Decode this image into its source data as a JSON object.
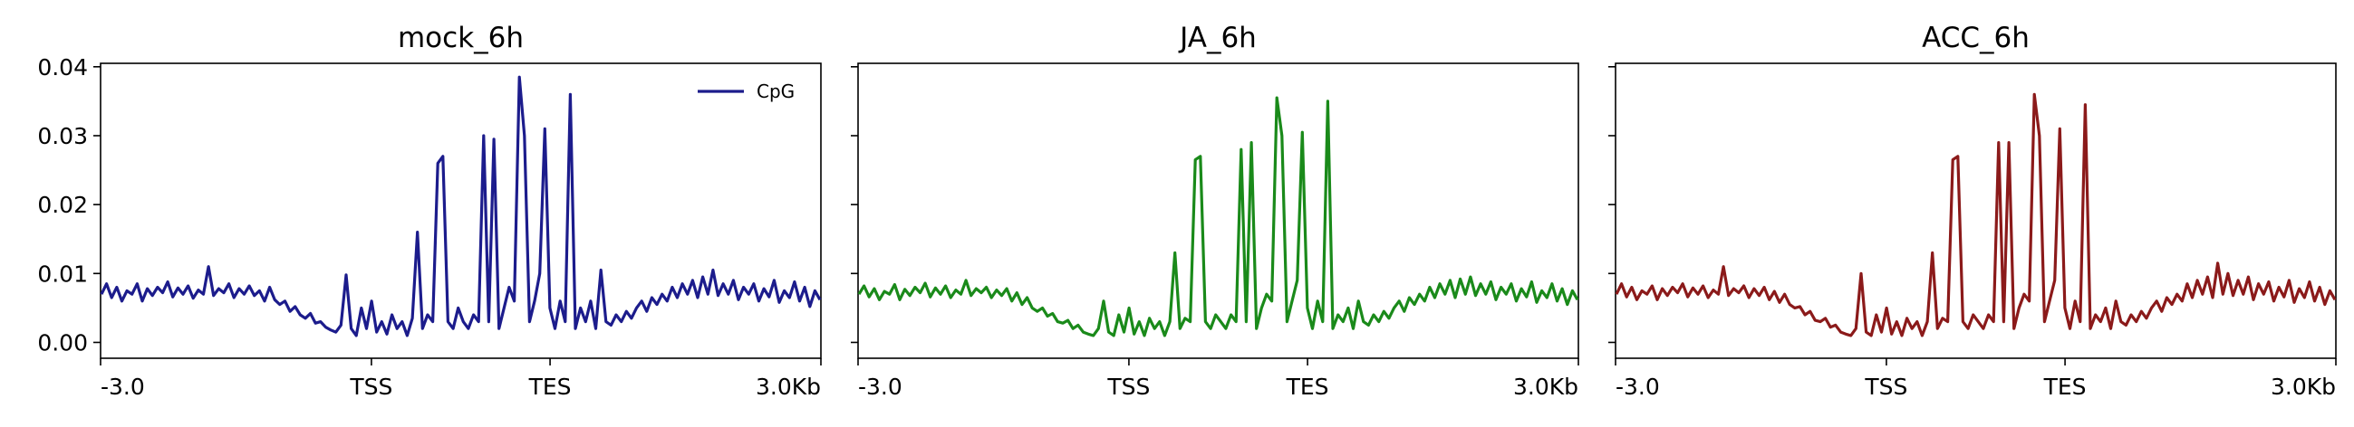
{
  "chart_data": [
    {
      "type": "line",
      "title": "mock_6h",
      "xlabel": "",
      "ylabel": "",
      "x_tick_labels": [
        "-3.0",
        "TSS",
        "TES",
        "3.0Kb"
      ],
      "y_tick_labels": [
        "0.00",
        "0.01",
        "0.02",
        "0.03",
        "0.04"
      ],
      "ylim": [
        -0.0023,
        0.0405
      ],
      "legend": {
        "placement": "top-right",
        "entries": [
          "CpG"
        ]
      },
      "grid": false,
      "series": [
        {
          "name": "CpG",
          "color": "#1c1c8c",
          "values": [
            0.007,
            0.0085,
            0.0065,
            0.008,
            0.006,
            0.0075,
            0.007,
            0.0085,
            0.006,
            0.0078,
            0.0068,
            0.008,
            0.0072,
            0.0088,
            0.0066,
            0.0079,
            0.007,
            0.0082,
            0.0064,
            0.0076,
            0.007,
            0.011,
            0.0068,
            0.0078,
            0.0072,
            0.0085,
            0.0065,
            0.0078,
            0.007,
            0.0082,
            0.0068,
            0.0075,
            0.006,
            0.008,
            0.0062,
            0.0055,
            0.006,
            0.0045,
            0.0052,
            0.004,
            0.0035,
            0.0042,
            0.0028,
            0.003,
            0.0022,
            0.0018,
            0.0015,
            0.0025,
            0.0098,
            0.002,
            0.001,
            0.005,
            0.002,
            0.006,
            0.0015,
            0.003,
            0.0012,
            0.004,
            0.002,
            0.003,
            0.001,
            0.0035,
            0.016,
            0.002,
            0.004,
            0.003,
            0.026,
            0.027,
            0.003,
            0.002,
            0.005,
            0.003,
            0.002,
            0.004,
            0.003,
            0.03,
            0.003,
            0.0295,
            0.002,
            0.005,
            0.008,
            0.006,
            0.0385,
            0.03,
            0.003,
            0.006,
            0.01,
            0.031,
            0.005,
            0.002,
            0.006,
            0.003,
            0.036,
            0.002,
            0.005,
            0.003,
            0.006,
            0.002,
            0.0105,
            0.003,
            0.0025,
            0.004,
            0.003,
            0.0045,
            0.0035,
            0.005,
            0.006,
            0.0045,
            0.0065,
            0.0055,
            0.007,
            0.006,
            0.008,
            0.0065,
            0.0085,
            0.007,
            0.009,
            0.0065,
            0.0095,
            0.007,
            0.0105,
            0.0068,
            0.0085,
            0.007,
            0.009,
            0.0062,
            0.008,
            0.007,
            0.0085,
            0.006,
            0.0078,
            0.0066,
            0.009,
            0.0058,
            0.0075,
            0.0065,
            0.0088,
            0.006,
            0.008,
            0.0052,
            0.0075,
            0.0062
          ]
        }
      ]
    },
    {
      "type": "line",
      "title": "JA_6h",
      "xlabel": "",
      "ylabel": "",
      "x_tick_labels": [
        "-3.0",
        "TSS",
        "TES",
        "3.0Kb"
      ],
      "ylim": [
        -0.0023,
        0.0405
      ],
      "grid": false,
      "series": [
        {
          "color": "#1a8a1a",
          "values": [
            0.007,
            0.0082,
            0.0066,
            0.0078,
            0.0062,
            0.0074,
            0.007,
            0.0084,
            0.0062,
            0.0077,
            0.0068,
            0.008,
            0.0072,
            0.0086,
            0.0066,
            0.0079,
            0.007,
            0.0082,
            0.0065,
            0.0076,
            0.007,
            0.009,
            0.0068,
            0.0078,
            0.0072,
            0.008,
            0.0065,
            0.0076,
            0.0068,
            0.0078,
            0.006,
            0.0072,
            0.0055,
            0.0065,
            0.005,
            0.0045,
            0.005,
            0.0038,
            0.0042,
            0.003,
            0.0028,
            0.0032,
            0.002,
            0.0025,
            0.0015,
            0.0012,
            0.001,
            0.002,
            0.006,
            0.0015,
            0.001,
            0.004,
            0.0015,
            0.005,
            0.0012,
            0.003,
            0.001,
            0.0035,
            0.002,
            0.003,
            0.001,
            0.003,
            0.013,
            0.002,
            0.0035,
            0.003,
            0.0265,
            0.027,
            0.003,
            0.002,
            0.004,
            0.003,
            0.002,
            0.004,
            0.003,
            0.028,
            0.003,
            0.029,
            0.002,
            0.005,
            0.007,
            0.006,
            0.0355,
            0.03,
            0.003,
            0.006,
            0.009,
            0.0305,
            0.005,
            0.002,
            0.006,
            0.003,
            0.035,
            0.002,
            0.004,
            0.003,
            0.005,
            0.002,
            0.006,
            0.003,
            0.0025,
            0.004,
            0.003,
            0.0045,
            0.0035,
            0.005,
            0.006,
            0.0045,
            0.0065,
            0.0055,
            0.007,
            0.006,
            0.008,
            0.0065,
            0.0085,
            0.007,
            0.009,
            0.0065,
            0.0092,
            0.007,
            0.0095,
            0.0068,
            0.0085,
            0.007,
            0.0088,
            0.0062,
            0.008,
            0.007,
            0.0085,
            0.006,
            0.0078,
            0.0066,
            0.0088,
            0.0058,
            0.0075,
            0.0065,
            0.0085,
            0.006,
            0.0078,
            0.0055,
            0.0075,
            0.0062
          ]
        }
      ]
    },
    {
      "type": "line",
      "title": "ACC_6h",
      "xlabel": "",
      "ylabel": "",
      "x_tick_labels": [
        "-3.0",
        "TSS",
        "TES",
        "3.0Kb"
      ],
      "ylim": [
        -0.0023,
        0.0405
      ],
      "grid": false,
      "series": [
        {
          "color": "#8b1a1a",
          "values": [
            0.007,
            0.0085,
            0.0066,
            0.008,
            0.0062,
            0.0075,
            0.007,
            0.0082,
            0.0062,
            0.0078,
            0.0068,
            0.008,
            0.0072,
            0.0085,
            0.0066,
            0.0079,
            0.007,
            0.0082,
            0.0065,
            0.0076,
            0.007,
            0.011,
            0.0068,
            0.0078,
            0.0072,
            0.0082,
            0.0065,
            0.0078,
            0.0068,
            0.008,
            0.0062,
            0.0074,
            0.0058,
            0.007,
            0.0055,
            0.005,
            0.0052,
            0.004,
            0.0045,
            0.0032,
            0.003,
            0.0035,
            0.0022,
            0.0025,
            0.0015,
            0.0012,
            0.001,
            0.002,
            0.01,
            0.0015,
            0.001,
            0.004,
            0.0015,
            0.005,
            0.0012,
            0.003,
            0.001,
            0.0035,
            0.002,
            0.003,
            0.001,
            0.003,
            0.013,
            0.002,
            0.0035,
            0.003,
            0.0265,
            0.027,
            0.003,
            0.002,
            0.004,
            0.003,
            0.002,
            0.004,
            0.003,
            0.029,
            0.003,
            0.029,
            0.002,
            0.005,
            0.007,
            0.006,
            0.036,
            0.03,
            0.003,
            0.006,
            0.009,
            0.031,
            0.005,
            0.002,
            0.006,
            0.003,
            0.0345,
            0.002,
            0.004,
            0.003,
            0.005,
            0.002,
            0.006,
            0.003,
            0.0025,
            0.004,
            0.003,
            0.0045,
            0.0035,
            0.005,
            0.006,
            0.0045,
            0.0065,
            0.0055,
            0.007,
            0.006,
            0.0085,
            0.0065,
            0.009,
            0.007,
            0.0095,
            0.0065,
            0.0115,
            0.007,
            0.01,
            0.0068,
            0.009,
            0.007,
            0.0095,
            0.0062,
            0.0085,
            0.007,
            0.0088,
            0.006,
            0.008,
            0.0066,
            0.009,
            0.0058,
            0.0078,
            0.0065,
            0.0088,
            0.006,
            0.008,
            0.0055,
            0.0075,
            0.0062
          ]
        }
      ]
    }
  ]
}
